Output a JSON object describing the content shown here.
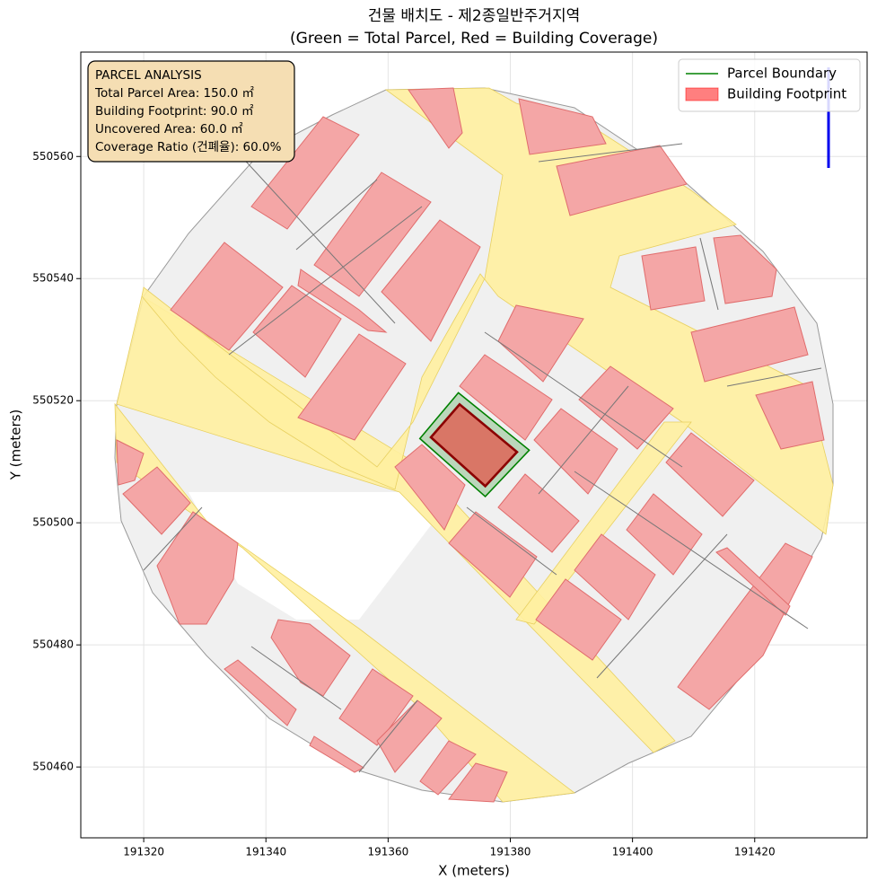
{
  "chart_data": {
    "type": "polygon",
    "title": "건물 배치도 - 제2종일반주거지역",
    "subtitle": "(Green = Total Parcel, Red = Building Coverage)",
    "xlabel": "X (meters)",
    "ylabel": "Y (meters)",
    "xlim": [
      191309.7,
      191438.4
    ],
    "ylim": [
      550448.4,
      550577.1
    ],
    "xticks": [
      191320,
      191340,
      191360,
      191380,
      191400,
      191420
    ],
    "yticks": [
      550460,
      550480,
      550500,
      550520,
      550540,
      550560
    ],
    "grid": true,
    "legend": "upper right",
    "annotation": {
      "lines": [
        "PARCEL ANALYSIS",
        "Total Parcel Area: 150.0 ㎡",
        "Building Footprint: 90.0 ㎡",
        "Uncovered Area: 60.0 ㎡",
        "Coverage Ratio (건폐율): 60.0%"
      ]
    },
    "series": [
      {
        "name": "Parcel Boundary",
        "color": "green",
        "x": [
          191365.2,
          191371.5,
          191383.1,
          191375.9
        ],
        "y": [
          550513.8,
          550521.3,
          550511.9,
          550504.3
        ]
      },
      {
        "name": "Building Footprint",
        "color": "red",
        "edgecolor": "darkred",
        "x": [
          191367.0,
          191371.7,
          191381.1,
          191375.9
        ],
        "y": [
          550514.0,
          550519.4,
          550511.6,
          550506.0
        ]
      }
    ]
  }
}
